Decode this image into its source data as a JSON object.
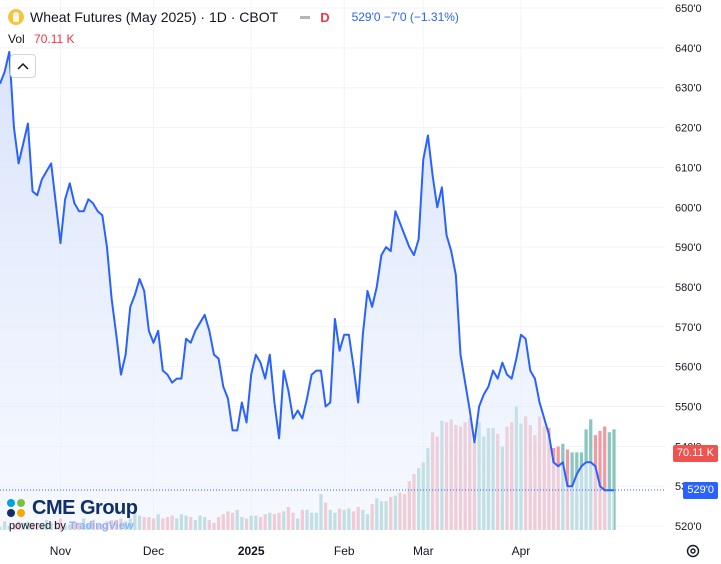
{
  "header": {
    "title": "Wheat Futures (May 2025) · 1D · CBOT",
    "d_label": "D",
    "ohlc_text": "529'0  −7'0 (−1.31%)",
    "vol_label": "Vol",
    "vol_value": "70.11 K"
  },
  "logo": {
    "name": "CME Group",
    "powered_by": "powered by",
    "platform": "TradingView"
  },
  "icons": {
    "symbol": "wheat-symbol-icon",
    "collapse": "chevron-up-icon",
    "settings": "gear-icon"
  },
  "colors": {
    "price_line": "#2962ff",
    "area_fill": "#dfe7fb",
    "volume_up": "#89c6bf",
    "volume_down": "#f29aa2",
    "vol_tag": "#ef5350",
    "last_tag": "#2962ff"
  },
  "price_tags": {
    "volume": "70.11 K",
    "last": "529'0"
  },
  "chart_data": {
    "type": "area",
    "y_axis": {
      "min": 516,
      "max": 651,
      "ticks": [
        "650'0",
        "640'0",
        "630'0",
        "620'0",
        "610'0",
        "600'0",
        "590'0",
        "580'0",
        "570'0",
        "560'0",
        "550'0",
        "540'0",
        "530'0",
        "520'0"
      ],
      "tick_values": [
        650,
        640,
        630,
        620,
        610,
        600,
        590,
        580,
        570,
        560,
        550,
        540,
        530,
        520
      ]
    },
    "x_axis": {
      "labels": [
        {
          "text": "Nov",
          "index": 13,
          "bold": false
        },
        {
          "text": "Dec",
          "index": 33,
          "bold": false
        },
        {
          "text": "2025",
          "index": 54,
          "bold": true
        },
        {
          "text": "Feb",
          "index": 74,
          "bold": false
        },
        {
          "text": "Mar",
          "index": 91,
          "bold": false
        },
        {
          "text": "Apr",
          "index": 112,
          "bold": false
        }
      ]
    },
    "series": [
      {
        "kind": "close_price",
        "values": [
          631,
          634,
          639,
          620,
          611,
          616,
          621,
          604,
          603,
          607,
          609,
          611,
          601,
          591,
          602,
          606,
          601,
          599,
          599,
          602,
          601,
          599,
          598,
          590,
          577,
          568,
          558,
          563,
          575,
          578,
          582,
          579,
          569,
          566,
          569,
          559,
          558,
          556,
          557,
          557,
          567,
          566,
          569,
          571,
          573,
          569,
          563,
          562,
          555,
          552,
          544,
          544,
          551,
          546,
          558,
          563,
          561,
          557,
          563,
          551,
          542,
          559,
          554,
          547,
          549,
          547,
          552,
          558,
          559,
          559,
          550,
          551,
          572,
          564,
          568,
          568,
          560,
          551,
          568,
          579,
          575,
          580,
          588,
          590,
          589,
          599,
          596,
          593,
          590,
          588,
          592,
          612,
          618,
          608,
          600,
          605,
          593,
          589,
          583,
          563,
          556,
          549,
          541,
          550,
          553,
          555,
          559,
          557,
          561,
          558,
          557,
          562,
          568,
          567,
          559,
          557,
          551,
          547,
          543,
          536,
          535,
          536,
          530,
          530,
          533,
          535,
          536,
          536,
          535,
          530,
          529,
          529,
          529
        ]
      },
      {
        "kind": "volume",
        "values": [
          2,
          6,
          3,
          4,
          6,
          5,
          6,
          5,
          4,
          4,
          7,
          5,
          6,
          8,
          3,
          4,
          6,
          5,
          8,
          4,
          7,
          4,
          4,
          6,
          7,
          7,
          8,
          6,
          8,
          11,
          10,
          9,
          9,
          8,
          11,
          8,
          9,
          10,
          8,
          11,
          10,
          9,
          7,
          10,
          9,
          7,
          5,
          9,
          11,
          13,
          12,
          14,
          9,
          8,
          10,
          10,
          9,
          11,
          12,
          11,
          12,
          13,
          16,
          12,
          8,
          14,
          14,
          12,
          12,
          25,
          19,
          14,
          12,
          15,
          14,
          15,
          13,
          16,
          14,
          11,
          18,
          22,
          20,
          20,
          23,
          24,
          26,
          25,
          34,
          39,
          43,
          47,
          57,
          68,
          65,
          76,
          75,
          77,
          73,
          72,
          75,
          78,
          61,
          75,
          65,
          71,
          71,
          67,
          58,
          72,
          75,
          86,
          74,
          79,
          73,
          66,
          79,
          72,
          71,
          57,
          58,
          60,
          56,
          54,
          54,
          54,
          70,
          77,
          66,
          69,
          72,
          68,
          70
        ]
      }
    ]
  }
}
